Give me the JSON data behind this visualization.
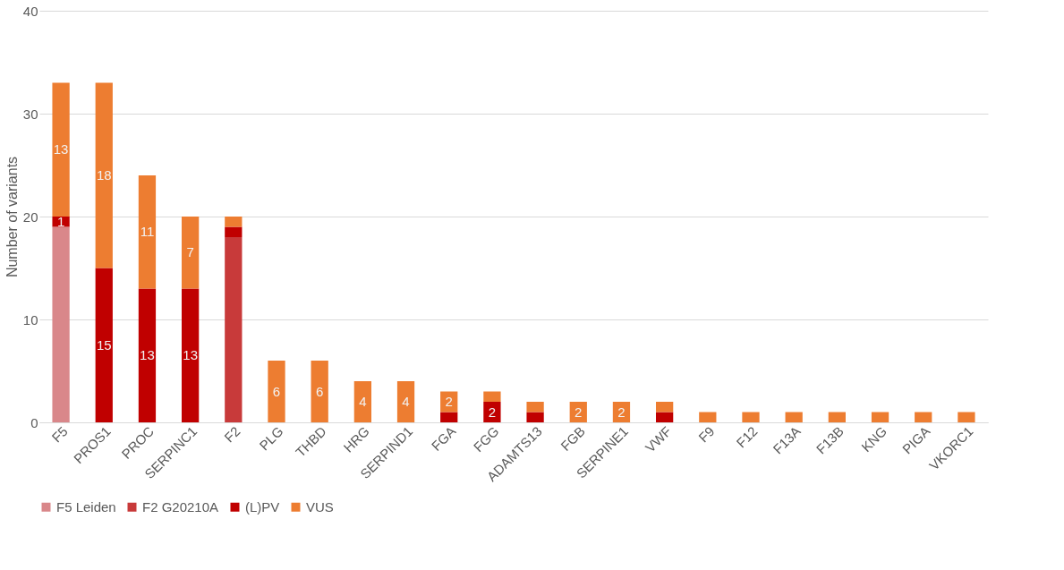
{
  "chart_data": {
    "type": "bar",
    "stacked": true,
    "ylabel": "Number of variants",
    "categories": [
      "F5",
      "PROS1",
      "PROC",
      "SERPINC1",
      "F2",
      "PLG",
      "THBD",
      "HRG",
      "SERPIND1",
      "FGA",
      "FGG",
      "ADAMTS13",
      "FGB",
      "SERPINE1",
      "VWF",
      "F9",
      "F12",
      "F13A",
      "F13B",
      "KNG",
      "PIGA",
      "VKORC1"
    ],
    "series": [
      {
        "name": "F5 Leiden",
        "color": "#d9878a",
        "values": [
          19,
          null,
          null,
          null,
          null,
          null,
          null,
          null,
          null,
          null,
          null,
          null,
          null,
          null,
          null,
          null,
          null,
          null,
          null,
          null,
          null,
          null
        ]
      },
      {
        "name": "F2 G20210A",
        "color": "#c83a3a",
        "values": [
          null,
          null,
          null,
          null,
          18,
          null,
          null,
          null,
          null,
          null,
          null,
          null,
          null,
          null,
          null,
          null,
          null,
          null,
          null,
          null,
          null,
          null
        ]
      },
      {
        "name": "(L)PV",
        "color": "#c00000",
        "values": [
          1,
          15,
          13,
          13,
          1,
          null,
          null,
          null,
          null,
          1,
          2,
          1,
          null,
          null,
          1,
          null,
          null,
          null,
          null,
          null,
          null,
          null
        ],
        "value_labels": [
          "1",
          "15",
          "13",
          "13",
          null,
          null,
          null,
          null,
          null,
          null,
          "2",
          null,
          null,
          null,
          null,
          null,
          null,
          null,
          null,
          null,
          null,
          null
        ]
      },
      {
        "name": "VUS",
        "color": "#ed7d31",
        "values": [
          13,
          18,
          11,
          7,
          1,
          6,
          6,
          4,
          4,
          2,
          1,
          1,
          2,
          2,
          1,
          1,
          1,
          1,
          1,
          1,
          1,
          1
        ],
        "value_labels": [
          "13",
          "18",
          "11",
          "7",
          null,
          "6",
          "6",
          "4",
          "4",
          "2",
          null,
          null,
          "2",
          "2",
          null,
          null,
          null,
          null,
          null,
          null,
          null,
          null
        ]
      }
    ],
    "ylim": [
      0,
      40
    ],
    "yticks": [
      0,
      10,
      20,
      30,
      40
    ],
    "grid": "y",
    "legend": "bottom"
  }
}
